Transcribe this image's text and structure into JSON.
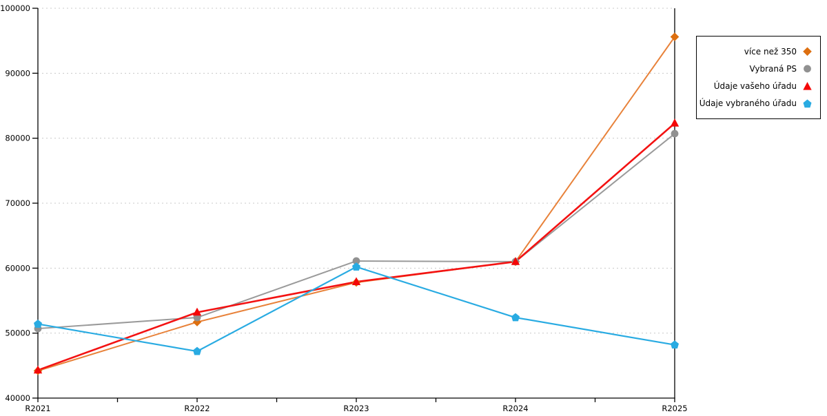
{
  "chart_data": {
    "type": "line",
    "categories": [
      "R2021",
      "R2022",
      "R2023",
      "R2024",
      "R2025"
    ],
    "series": [
      {
        "name": "více než 350",
        "marker": "diamond",
        "color": "#dd6f10",
        "line_color": "#e8823a",
        "values": [
          44200,
          51700,
          57800,
          61000,
          95600
        ]
      },
      {
        "name": "Vybraná PS",
        "marker": "circle",
        "color": "#919191",
        "line_color": "#9a9a9a",
        "values": [
          50700,
          52400,
          61100,
          61000,
          80700
        ]
      },
      {
        "name": "Údaje vašeho úřadu",
        "marker": "triangle-up",
        "color": "#f40707",
        "line_color": "#f31212",
        "values": [
          44300,
          53200,
          57900,
          61000,
          82300
        ]
      },
      {
        "name": "Údaje vybraného úřadu",
        "marker": "pentagon",
        "color": "#29abe2",
        "line_color": "#29abe2",
        "values": [
          51400,
          47200,
          60200,
          52400,
          48200
        ]
      }
    ],
    "ylim": [
      40000,
      100000
    ],
    "ytick_interval": 10000,
    "ytick_labels": [
      "40000",
      "50000",
      "60000",
      "70000",
      "80000",
      "90000",
      "100000"
    ],
    "xtick_labels": [
      "R2021",
      "R2022",
      "R2023",
      "R2024",
      "R2025"
    ],
    "grid": "horizontal dotted, minor x ticks at midpoints",
    "legend_position": "right",
    "axis_color": "#000000",
    "gridline_color": "#c8c8c8",
    "background_color": "#ffffff"
  }
}
